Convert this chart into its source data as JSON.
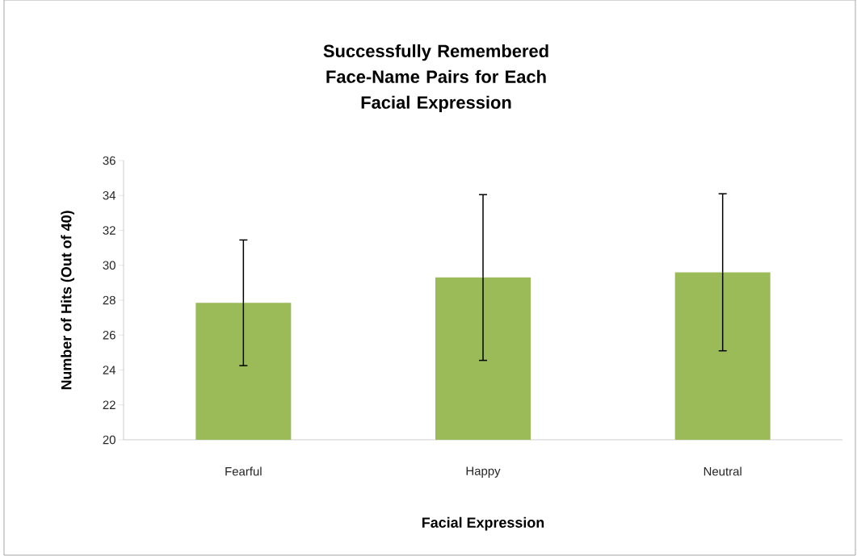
{
  "chart_data": {
    "type": "bar",
    "title": "Successfully Remembered\nFace-Name Pairs for Each\nFacial Expression",
    "xlabel": "Facial Expression",
    "ylabel": "Number of Hits (Out of 40)",
    "categories": [
      "Fearful",
      "Happy",
      "Neutral"
    ],
    "values": [
      27.85,
      29.3,
      29.6
    ],
    "errors": [
      3.6,
      4.75,
      4.5
    ],
    "color": "#9bbb59",
    "ylim": [
      20,
      36
    ],
    "yticks": [
      20,
      22,
      24,
      26,
      28,
      30,
      32,
      34,
      36
    ],
    "grid": false
  }
}
